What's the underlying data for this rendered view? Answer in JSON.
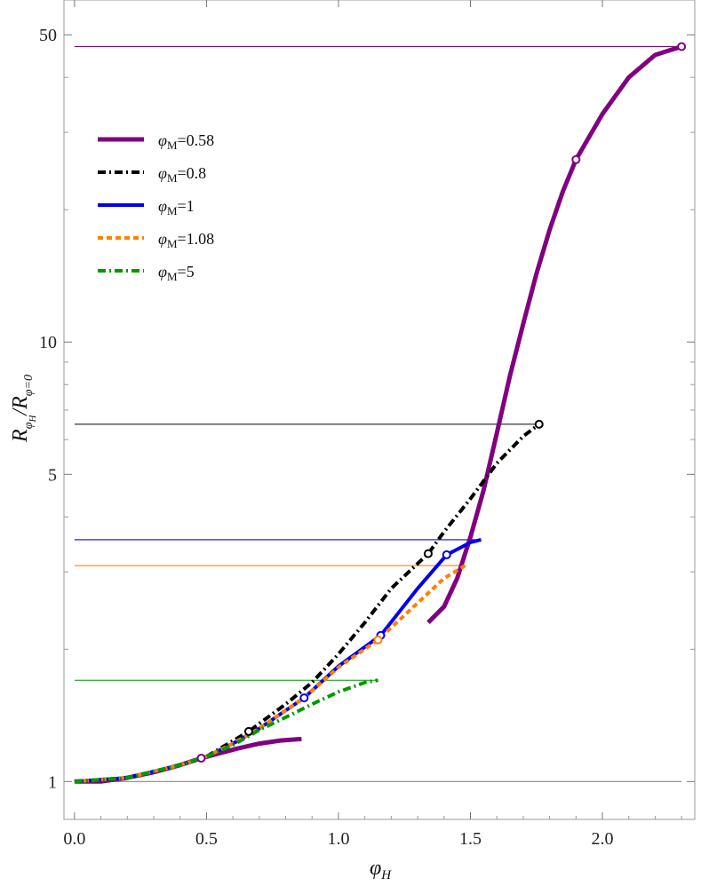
{
  "chart_data": {
    "type": "line",
    "xlabel": "φH",
    "ylabel": "RφH/Rφ=0",
    "xlim": [
      -0.04,
      2.35
    ],
    "ylim": [
      0.82,
      60
    ],
    "yscale": "log",
    "frame": true,
    "grid": false,
    "legend_position": "top-left",
    "x_ticks": [
      0.0,
      0.5,
      1.0,
      1.5,
      2.0
    ],
    "x_tick_labels": [
      "0.0",
      "0.5",
      "1.0",
      "1.5",
      "2.0"
    ],
    "y_ticks": [
      1,
      5,
      10,
      50
    ],
    "y_tick_labels": [
      "1",
      "5",
      "10",
      "50"
    ],
    "y_minor_ticks": [
      2,
      3,
      4,
      6,
      7,
      8,
      9,
      20,
      30,
      40
    ],
    "series": [
      {
        "name": "φM=0.58",
        "color": "#800080",
        "style": "solid",
        "weight": "thick",
        "x": [
          0.0,
          0.1,
          0.2,
          0.3,
          0.4,
          0.48,
          0.55,
          0.62,
          0.7,
          0.78,
          0.86
        ],
        "y": [
          1.0,
          1.0,
          1.02,
          1.05,
          1.09,
          1.13,
          1.16,
          1.19,
          1.22,
          1.24,
          1.25
        ],
        "x2": [
          1.34,
          1.4,
          1.45,
          1.5,
          1.55,
          1.6,
          1.65,
          1.7,
          1.75,
          1.8,
          1.85,
          1.9,
          2.0,
          2.1,
          2.2,
          2.3
        ],
        "y2": [
          2.3,
          2.5,
          2.9,
          3.6,
          4.6,
          6.2,
          8.4,
          11.0,
          14.3,
          18.0,
          22.0,
          26.0,
          33.0,
          40.0,
          45.0,
          47.0
        ],
        "markers": [
          [
            0.48,
            1.13
          ],
          [
            1.9,
            26.0
          ],
          [
            2.3,
            47.0
          ]
        ],
        "h_line": 47.0
      },
      {
        "name": "φM=0.8",
        "color": "#000000",
        "style": "dashdot",
        "weight": "thick",
        "x": [
          0.0,
          0.2,
          0.4,
          0.5,
          0.66,
          0.8,
          0.9,
          1.0,
          1.1,
          1.2,
          1.34,
          1.4,
          1.5,
          1.6,
          1.7,
          1.76
        ],
        "y": [
          1.0,
          1.02,
          1.09,
          1.14,
          1.3,
          1.5,
          1.68,
          1.95,
          2.3,
          2.75,
          3.3,
          3.7,
          4.4,
          5.3,
          6.1,
          6.5
        ],
        "markers": [
          [
            0.66,
            1.3
          ],
          [
            1.34,
            3.3
          ],
          [
            1.76,
            6.5
          ]
        ],
        "h_line": 6.5
      },
      {
        "name": "φM=1",
        "color": "#0000ee",
        "style": "solid",
        "weight": "thick",
        "x": [
          0.0,
          0.2,
          0.4,
          0.5,
          0.6,
          0.7,
          0.87,
          1.0,
          1.16,
          1.3,
          1.41,
          1.5,
          1.54
        ],
        "y": [
          1.0,
          1.02,
          1.09,
          1.14,
          1.22,
          1.32,
          1.55,
          1.83,
          2.15,
          2.75,
          3.28,
          3.5,
          3.55
        ],
        "markers": [
          [
            0.87,
            1.55
          ],
          [
            1.16,
            2.15
          ],
          [
            1.41,
            3.28
          ]
        ],
        "h_line": 3.55
      },
      {
        "name": "φM=1.08",
        "color": "#ff8000",
        "style": "dashed",
        "weight": "thick",
        "x": [
          0.0,
          0.2,
          0.4,
          0.5,
          0.6,
          0.7,
          0.87,
          1.0,
          1.15,
          1.3,
          1.4,
          1.48
        ],
        "y": [
          1.0,
          1.02,
          1.09,
          1.14,
          1.22,
          1.32,
          1.55,
          1.82,
          2.1,
          2.55,
          2.9,
          3.1
        ],
        "markers": [
          [
            1.15,
            2.1
          ]
        ],
        "h_line": 3.1
      },
      {
        "name": "φM=5",
        "color": "#009900",
        "style": "dashdot",
        "weight": "thick",
        "x": [
          0.0,
          0.2,
          0.4,
          0.5,
          0.6,
          0.7,
          0.8,
          0.9,
          1.0,
          1.1,
          1.15
        ],
        "y": [
          1.0,
          1.02,
          1.09,
          1.14,
          1.21,
          1.31,
          1.4,
          1.5,
          1.6,
          1.68,
          1.7
        ],
        "markers": [],
        "h_line": 1.7
      }
    ],
    "reference_line": {
      "y": 1.0,
      "color": "#888888"
    }
  }
}
